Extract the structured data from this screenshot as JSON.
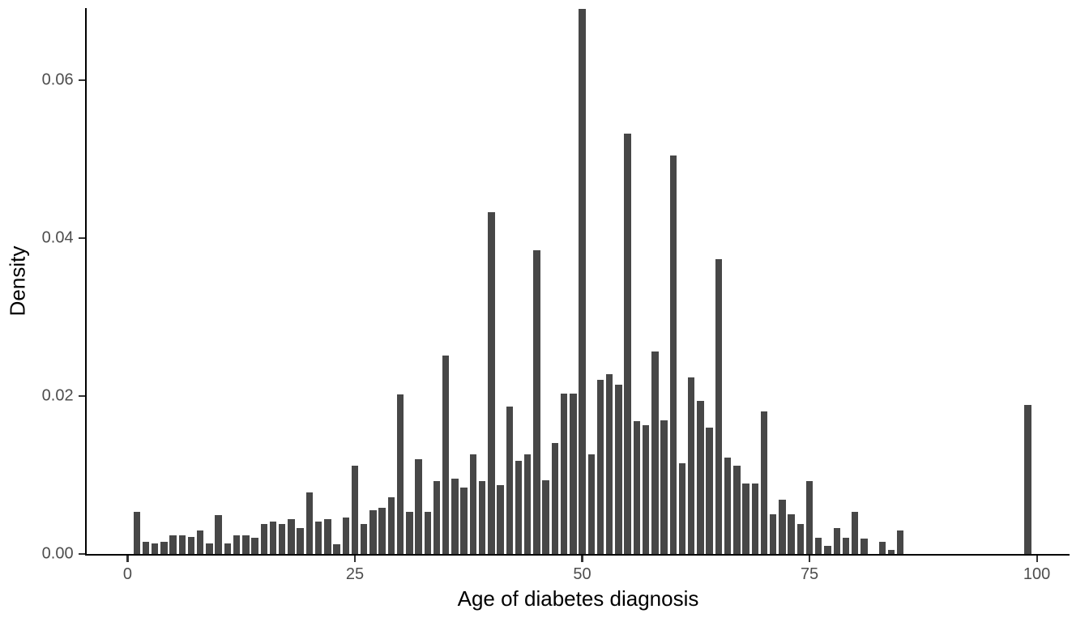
{
  "chart_data": {
    "type": "bar",
    "subtype": "histogram",
    "title": "",
    "xlabel": "Age of diabetes diagnosis",
    "ylabel": "Density",
    "x_ticks": {
      "values": [
        0,
        25,
        50,
        75,
        100
      ],
      "labels": [
        "0",
        "25",
        "50",
        "75",
        "100"
      ]
    },
    "y_ticks": {
      "values": [
        0,
        0.02,
        0.04,
        0.06
      ],
      "labels": [
        "0.00",
        "0.02",
        "0.04",
        "0.06"
      ]
    },
    "xlim": [
      -4.5,
      103.6
    ],
    "ylim": [
      0,
      0.0691
    ],
    "bin_width": 1,
    "bar_rel_width": 0.75,
    "grid": false,
    "legend_position": "none",
    "colors": {
      "bar": "#474747",
      "axis": "#000000",
      "tick": "#333333",
      "tick_label": "#4d4d4d",
      "axis_title": "#000000",
      "background": "#ffffff"
    },
    "series": [
      {
        "name": "Age of diabetes diagnosis density",
        "points": [
          {
            "x": 1,
            "y": 0.0053
          },
          {
            "x": 2,
            "y": 0.0015
          },
          {
            "x": 3,
            "y": 0.0013
          },
          {
            "x": 4,
            "y": 0.0015
          },
          {
            "x": 5,
            "y": 0.0024
          },
          {
            "x": 6,
            "y": 0.0024
          },
          {
            "x": 7,
            "y": 0.0022
          },
          {
            "x": 8,
            "y": 0.003
          },
          {
            "x": 9,
            "y": 0.0013
          },
          {
            "x": 10,
            "y": 0.0049
          },
          {
            "x": 11,
            "y": 0.0013
          },
          {
            "x": 12,
            "y": 0.0024
          },
          {
            "x": 13,
            "y": 0.0024
          },
          {
            "x": 14,
            "y": 0.0021
          },
          {
            "x": 15,
            "y": 0.0038
          },
          {
            "x": 16,
            "y": 0.0041
          },
          {
            "x": 17,
            "y": 0.0038
          },
          {
            "x": 18,
            "y": 0.0044
          },
          {
            "x": 19,
            "y": 0.0033
          },
          {
            "x": 20,
            "y": 0.0078
          },
          {
            "x": 21,
            "y": 0.0041
          },
          {
            "x": 22,
            "y": 0.0044
          },
          {
            "x": 23,
            "y": 0.0012
          },
          {
            "x": 24,
            "y": 0.0046
          },
          {
            "x": 25,
            "y": 0.0112
          },
          {
            "x": 26,
            "y": 0.0038
          },
          {
            "x": 27,
            "y": 0.0055
          },
          {
            "x": 28,
            "y": 0.0058
          },
          {
            "x": 29,
            "y": 0.0072
          },
          {
            "x": 30,
            "y": 0.0202
          },
          {
            "x": 31,
            "y": 0.0053
          },
          {
            "x": 32,
            "y": 0.012
          },
          {
            "x": 33,
            "y": 0.0053
          },
          {
            "x": 34,
            "y": 0.0092
          },
          {
            "x": 35,
            "y": 0.0251
          },
          {
            "x": 36,
            "y": 0.0095
          },
          {
            "x": 37,
            "y": 0.0084
          },
          {
            "x": 38,
            "y": 0.0126
          },
          {
            "x": 39,
            "y": 0.0092
          },
          {
            "x": 40,
            "y": 0.0433
          },
          {
            "x": 41,
            "y": 0.0087
          },
          {
            "x": 42,
            "y": 0.0187
          },
          {
            "x": 43,
            "y": 0.0118
          },
          {
            "x": 44,
            "y": 0.0126
          },
          {
            "x": 45,
            "y": 0.0384
          },
          {
            "x": 46,
            "y": 0.0093
          },
          {
            "x": 47,
            "y": 0.014
          },
          {
            "x": 48,
            "y": 0.0203
          },
          {
            "x": 49,
            "y": 0.0203
          },
          {
            "x": 50,
            "y": 0.069
          },
          {
            "x": 51,
            "y": 0.0126
          },
          {
            "x": 52,
            "y": 0.022
          },
          {
            "x": 53,
            "y": 0.0228
          },
          {
            "x": 54,
            "y": 0.0214
          },
          {
            "x": 55,
            "y": 0.0532
          },
          {
            "x": 56,
            "y": 0.0168
          },
          {
            "x": 57,
            "y": 0.0163
          },
          {
            "x": 58,
            "y": 0.0256
          },
          {
            "x": 59,
            "y": 0.0169
          },
          {
            "x": 60,
            "y": 0.0504
          },
          {
            "x": 61,
            "y": 0.0115
          },
          {
            "x": 62,
            "y": 0.0223
          },
          {
            "x": 63,
            "y": 0.0194
          },
          {
            "x": 64,
            "y": 0.016
          },
          {
            "x": 65,
            "y": 0.0373
          },
          {
            "x": 66,
            "y": 0.0122
          },
          {
            "x": 67,
            "y": 0.0112
          },
          {
            "x": 68,
            "y": 0.0089
          },
          {
            "x": 69,
            "y": 0.0089
          },
          {
            "x": 70,
            "y": 0.018
          },
          {
            "x": 71,
            "y": 0.005
          },
          {
            "x": 72,
            "y": 0.0069
          },
          {
            "x": 73,
            "y": 0.005
          },
          {
            "x": 74,
            "y": 0.0038
          },
          {
            "x": 75,
            "y": 0.0092
          },
          {
            "x": 76,
            "y": 0.0021
          },
          {
            "x": 77,
            "y": 0.001
          },
          {
            "x": 78,
            "y": 0.0033
          },
          {
            "x": 79,
            "y": 0.0021
          },
          {
            "x": 80,
            "y": 0.0053
          },
          {
            "x": 81,
            "y": 0.0019
          },
          {
            "x": 83,
            "y": 0.0015
          },
          {
            "x": 84,
            "y": 0.0005
          },
          {
            "x": 85,
            "y": 0.003
          },
          {
            "x": 99,
            "y": 0.0189
          }
        ]
      }
    ]
  }
}
